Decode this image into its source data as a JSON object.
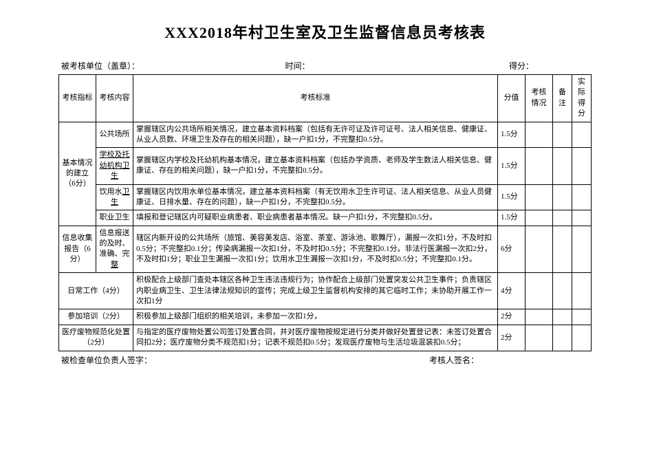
{
  "title": "XXX2018年村卫生室及卫生监督信息员考核表",
  "header": {
    "unit": "被考核单位（盖章）：",
    "time": "时间：",
    "score": "得分："
  },
  "columns": {
    "indicator": "考核指标",
    "content": "考核内容",
    "standard": "考核标准",
    "score": "分值",
    "status": "考核情况",
    "remark": "备注",
    "actual": "实际得分"
  },
  "rows": [
    {
      "indicator": "基本情况的建立（6分）",
      "content": "公共场所",
      "standard": "掌握辖区内公共场所相关情况，建立基本资料档案（包括有无许可证及许可证号、法人相关信息、健康证、从业人员数、环境卫生及存在的相关问题），缺一户扣1分，不完整扣0.5分。",
      "score": "1.5分"
    },
    {
      "content": "学校及托幼机构卫生",
      "standard": "掌握辖区内学校及托幼机构基本情况，建立基本资料档案（包括办学资质、老师及学生数法人相关信息、健康证、存在的相关问题），缺一户扣1分，不完整扣0.5分。",
      "score": "1.5分"
    },
    {
      "content": "饮用水卫生",
      "standard": "掌握辖区内饮用水单位基本情况，建立基本资料档案（有无饮用水卫生许可证、法人相关信息、从业人员健康证、日排水量、存在的问题），缺一户扣1分，不完整扣0.5分。",
      "score": "1.5分"
    },
    {
      "content": "职业卫生",
      "standard": "填报和登记辖区内可疑职业病患者、职业病患者基本情况。缺一户扣1分，不完整扣0.5分。",
      "score": "1.5分"
    },
    {
      "indicator": "信息收集报告（6分）",
      "content": "信息报送的及时、准确、完整",
      "standard": "辖区内新开设的公共场所（旅馆、美容美发店、浴室、茶室、游泳池、歌舞厅），漏报一次扣1分，不及时扣0.5分；不完整扣0.1分；传染病漏报一次扣1分，不及时扣0.5分；不完整扣0.1分。非法行医漏报一次扣2分，不及时扣1分；职业卫生漏报一次扣1分；饮用水卫生漏报一次扣1分，不及时扣0.5分；不完整扣0.1分。",
      "score": "6分"
    },
    {
      "indicator": "日常工作（4分）",
      "standard": "积极配合上级部门查处本辖区各种卫生违法违规行为；协作配合上级部门处置突发公共卫生事件；负责辖区内职业病卫生、卫生法律法规知识的宣传；完成上级卫生监督机构安排的其它临时工作；未协助开展工作一次扣1分",
      "score": "4分"
    },
    {
      "indicator": "参加培训（2分）",
      "standard": "积极参加上级部门组织的相关培训，未参加一次扣1分，",
      "score": "2分"
    },
    {
      "indicator": "医疗废物规范化处置（2分）",
      "standard": "与指定的医疗废物处置公司签订处置合同，并对医疗废物按规定进行分类并做好处置登记表：未签订处置合同扣2分；医疗废物分类不规范扣1分；记表不规范扣0.5分；发现医疗废物与生活垃圾混装扣0.5分；",
      "score": "2分"
    }
  ],
  "footer": {
    "left": "被检查单位负责人签字：",
    "right": "考核人签名："
  }
}
